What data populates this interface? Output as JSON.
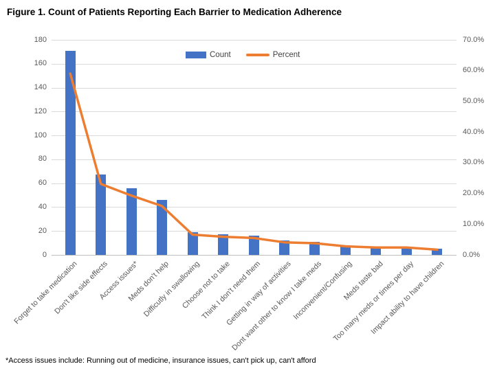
{
  "figure": {
    "title": "Figure 1. Count of Patients Reporting Each Barrier to Medication Adherence",
    "footnote": "*Access issues include: Running out of medicine, insurance issues, can't pick up, can't afford"
  },
  "chart_data": {
    "type": "bar",
    "combo": "bar+line",
    "title": "Figure 1. Count of Patients Reporting Each Barrier to Medication Adherence",
    "categories": [
      "Forget to take medication",
      "Don't like side effects",
      "Access issues*",
      "Meds don't help",
      "Difficutly in swallowing",
      "Choose not to take",
      "Think I don't need them",
      "Getting in way of activities",
      "Dont want other to know I take meds",
      "Inconvenient/Confusing",
      "Meds taste bad",
      "Too many meds or times per day",
      "Impact ability to have children"
    ],
    "series": [
      {
        "name": "Count",
        "type": "bar",
        "axis": "left",
        "color": "#4472C4",
        "values": [
          171,
          67,
          56,
          46,
          19,
          17,
          16,
          12,
          11,
          8,
          7,
          7,
          5
        ]
      },
      {
        "name": "Percent",
        "type": "line",
        "axis": "right",
        "color": "#ED7D31",
        "values": [
          59.0,
          23.1,
          19.3,
          15.9,
          6.6,
          5.9,
          5.5,
          4.1,
          3.8,
          2.8,
          2.4,
          2.4,
          1.7
        ]
      }
    ],
    "left_axis": {
      "min": 0,
      "max": 180,
      "step": 20,
      "ticks": [
        "0",
        "20",
        "40",
        "60",
        "80",
        "100",
        "120",
        "140",
        "160",
        "180"
      ]
    },
    "right_axis": {
      "min": 0,
      "max": 70,
      "step": 10,
      "ticks": [
        "0.0%",
        "10.0%",
        "20.0%",
        "30.0%",
        "40.0%",
        "50.0%",
        "60.0%",
        "70.0%"
      ]
    },
    "legend": [
      "Count",
      "Percent"
    ],
    "legend_position": "top-center-inside",
    "grid": true
  },
  "colors": {
    "bar": "#4472C4",
    "line": "#ED7D31",
    "gridline": "#D9D9D9",
    "axis_text": "#595959",
    "background": "#FFFFFF"
  }
}
